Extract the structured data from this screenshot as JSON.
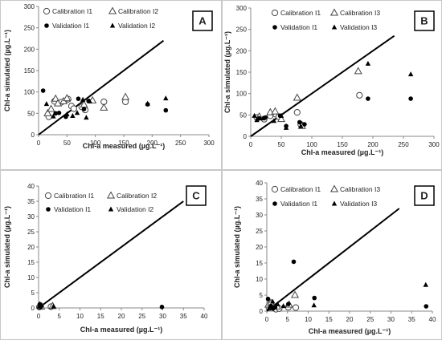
{
  "chart_data": [
    {
      "type": "scatter",
      "panel_label": "A",
      "xlabel": "Chl-a  measured (µg.L⁻¹)",
      "ylabel": "Chl-a  simulated (µg.L⁻¹)",
      "xlim": [
        0,
        300
      ],
      "ylim": [
        0,
        300
      ],
      "xticks": [
        0,
        50,
        100,
        150,
        200,
        250,
        300
      ],
      "yticks": [
        0,
        50,
        100,
        150,
        200,
        250,
        300
      ],
      "reference_line": [
        [
          0,
          0
        ],
        [
          220,
          220
        ]
      ],
      "legend_position": "top",
      "series": [
        {
          "name": "Calibration I1",
          "marker": "open-circle",
          "points": [
            [
              18,
              42
            ],
            [
              28,
              78
            ],
            [
              40,
              76
            ],
            [
              52,
              83
            ],
            [
              58,
              67
            ],
            [
              62,
              61
            ],
            [
              76,
              65
            ],
            [
              82,
              58
            ],
            [
              115,
              77
            ],
            [
              153,
              77
            ]
          ]
        },
        {
          "name": "Calibration I2",
          "marker": "open-triangle",
          "points": [
            [
              16,
              50
            ],
            [
              22,
              60
            ],
            [
              30,
              84
            ],
            [
              34,
              73
            ],
            [
              44,
              78
            ],
            [
              50,
              85
            ],
            [
              80,
              70
            ],
            [
              95,
              80
            ],
            [
              115,
              63
            ],
            [
              153,
              88
            ]
          ]
        },
        {
          "name": "Validation I1",
          "marker": "filled-circle",
          "points": [
            [
              8,
              103
            ],
            [
              30,
              50
            ],
            [
              36,
              51
            ],
            [
              48,
              42
            ],
            [
              70,
              84
            ],
            [
              80,
              60
            ],
            [
              88,
              79
            ],
            [
              192,
              71
            ],
            [
              224,
              57
            ]
          ]
        },
        {
          "name": "Validation I2",
          "marker": "filled-triangle",
          "points": [
            [
              14,
              72
            ],
            [
              26,
              43
            ],
            [
              50,
              48
            ],
            [
              60,
              44
            ],
            [
              68,
              51
            ],
            [
              78,
              82
            ],
            [
              84,
              40
            ],
            [
              90,
              78
            ],
            [
              192,
              73
            ],
            [
              224,
              85
            ]
          ]
        }
      ]
    },
    {
      "type": "scatter",
      "panel_label": "B",
      "xlabel": "Chl-a  measured (µg.L⁻¹)",
      "ylabel": "Chl-a  simulated (µg.L⁻¹)",
      "xlim": [
        0,
        300
      ],
      "ylim": [
        0,
        300
      ],
      "xticks": [
        0,
        50,
        100,
        150,
        200,
        250,
        300
      ],
      "yticks": [
        0,
        50,
        100,
        150,
        200,
        250,
        300
      ],
      "reference_line": [
        [
          0,
          0
        ],
        [
          235,
          235
        ]
      ],
      "legend_position": "top",
      "series": [
        {
          "name": "Calibration I1",
          "marker": "open-circle",
          "points": [
            [
              10,
              44
            ],
            [
              22,
              40
            ],
            [
              32,
              48
            ],
            [
              40,
              52
            ],
            [
              46,
              46
            ],
            [
              76,
              56
            ],
            [
              82,
              28
            ],
            [
              178,
              96
            ]
          ]
        },
        {
          "name": "Calibration I3",
          "marker": "open-triangle",
          "points": [
            [
              14,
              46
            ],
            [
              32,
              56
            ],
            [
              40,
              58
            ],
            [
              50,
              40
            ],
            [
              76,
              90
            ],
            [
              84,
              24
            ],
            [
              176,
              152
            ]
          ]
        },
        {
          "name": "Validation I1",
          "marker": "filled-circle",
          "points": [
            [
              14,
              42
            ],
            [
              24,
              44
            ],
            [
              48,
              48
            ],
            [
              58,
              24
            ],
            [
              80,
              33
            ],
            [
              88,
              28
            ],
            [
              192,
              88
            ],
            [
              262,
              88
            ]
          ]
        },
        {
          "name": "Validation I3",
          "marker": "filled-triangle",
          "points": [
            [
              6,
              48
            ],
            [
              10,
              38
            ],
            [
              20,
              42
            ],
            [
              38,
              36
            ],
            [
              50,
              48
            ],
            [
              58,
              20
            ],
            [
              82,
              24
            ],
            [
              192,
              170
            ],
            [
              262,
              145
            ]
          ]
        }
      ]
    },
    {
      "type": "scatter",
      "panel_label": "C",
      "xlabel": "Chl-a measured (µg.L⁻¹)",
      "ylabel": "Chl-a simulated (µg.L⁻¹)",
      "xlim": [
        0,
        40
      ],
      "ylim": [
        0,
        40
      ],
      "xticks": [
        0,
        5,
        10,
        15,
        20,
        25,
        30,
        35,
        40
      ],
      "yticks": [
        0,
        5,
        10,
        15,
        20,
        25,
        30,
        35,
        40
      ],
      "reference_line": [
        [
          0,
          0
        ],
        [
          35,
          35
        ]
      ],
      "legend_position": "top",
      "series": [
        {
          "name": "Calibration I1",
          "marker": "open-circle",
          "points": [
            [
              0.2,
              0.3
            ],
            [
              0.5,
              0.6
            ],
            [
              3.0,
              0.4
            ]
          ]
        },
        {
          "name": "Calibration I2",
          "marker": "open-triangle",
          "points": [
            [
              0.3,
              0.8
            ],
            [
              0.6,
              0.4
            ],
            [
              3.4,
              0.6
            ]
          ]
        },
        {
          "name": "Validation I1",
          "marker": "filled-circle",
          "points": [
            [
              0.3,
              1.2
            ],
            [
              0.5,
              0.3
            ],
            [
              29.8,
              0.3
            ]
          ]
        },
        {
          "name": "Validation I2",
          "marker": "filled-triangle",
          "points": [
            [
              0.2,
              0.5
            ],
            [
              0.7,
              1.0
            ],
            [
              3.6,
              0.5
            ]
          ]
        }
      ]
    },
    {
      "type": "scatter",
      "panel_label": "D",
      "xlabel": "Chl-a measured (µg.L⁻¹)",
      "ylabel": "Chl-a simulated (µg.L⁻¹)",
      "xlim": [
        0,
        40
      ],
      "ylim": [
        0,
        40
      ],
      "xticks": [
        0,
        5,
        10,
        15,
        20,
        25,
        30,
        35,
        40
      ],
      "yticks": [
        0,
        5,
        10,
        15,
        20,
        25,
        30,
        35,
        40
      ],
      "reference_line": [
        [
          0,
          0
        ],
        [
          32,
          32
        ]
      ],
      "legend_position": "top",
      "series": [
        {
          "name": "Calibration I1",
          "marker": "open-circle",
          "points": [
            [
              0.5,
              1.2
            ],
            [
              1.2,
              1.6
            ],
            [
              2.2,
              0.6
            ],
            [
              3.0,
              0.8
            ],
            [
              5.2,
              1.2
            ],
            [
              7.0,
              1.1
            ]
          ]
        },
        {
          "name": "Calibration I3",
          "marker": "open-triangle",
          "points": [
            [
              0.4,
              2.0
            ],
            [
              1.0,
              2.5
            ],
            [
              2.5,
              1.4
            ],
            [
              5.4,
              2.0
            ],
            [
              6.8,
              5.0
            ]
          ]
        },
        {
          "name": "Validation I1",
          "marker": "filled-circle",
          "points": [
            [
              0.3,
              3.8
            ],
            [
              1.0,
              1.6
            ],
            [
              1.5,
              0.8
            ],
            [
              2.0,
              1.2
            ],
            [
              5.2,
              2.2
            ],
            [
              6.5,
              15.4
            ],
            [
              11.5,
              4.1
            ],
            [
              38.5,
              1.5
            ]
          ]
        },
        {
          "name": "Validation I3",
          "marker": "filled-triangle",
          "points": [
            [
              0.5,
              0.8
            ],
            [
              1.4,
              3.0
            ],
            [
              2.6,
              2.2
            ],
            [
              4.0,
              1.6
            ],
            [
              11.4,
              1.8
            ],
            [
              38.4,
              8.2
            ]
          ]
        }
      ]
    }
  ]
}
